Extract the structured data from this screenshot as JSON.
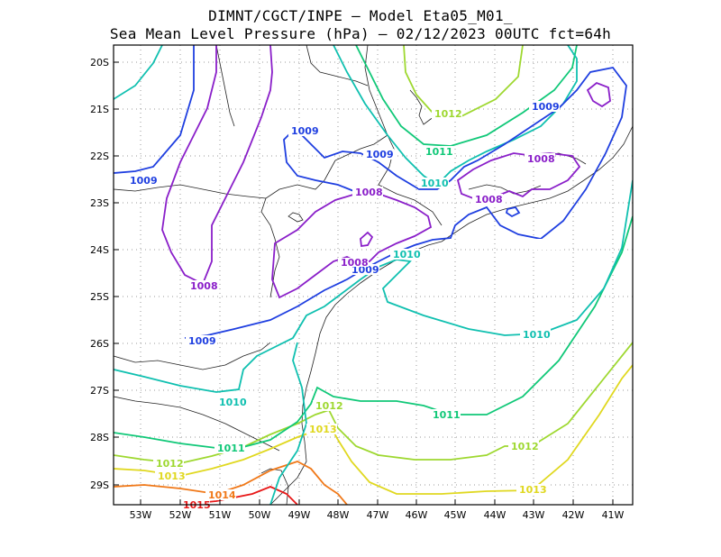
{
  "title_line1": "DIMNT/CGCT/INPE –  Model Eta05_M01_",
  "title_line2": "Sea Mean Level Pressure (hPa) – 02/12/2023 00UTC fct=64h",
  "lat_labels": [
    "20S",
    "21S",
    "22S",
    "23S",
    "24S",
    "25S",
    "26S",
    "27S",
    "28S",
    "29S"
  ],
  "lon_labels": [
    "53W",
    "52W",
    "51W",
    "50W",
    "49W",
    "48W",
    "47W",
    "46W",
    "45W",
    "44W",
    "43W",
    "42W",
    "41W"
  ],
  "contour_labels": {
    "l1008_a": "1008",
    "l1008_b": "1008",
    "l1008_c": "1008",
    "l1008_d": "1008",
    "l1008_e": "1008",
    "l1009_a": "1009",
    "l1009_b": "1009",
    "l1009_c": "1009",
    "l1009_d": "1009",
    "l1009_e": "1009",
    "l1009_f": "1009",
    "l1010_a": "1010",
    "l1010_b": "1010",
    "l1010_c": "1010",
    "l1010_d": "1010",
    "l1011_a": "1011",
    "l1011_b": "1011",
    "l1011_c": "1011",
    "l1012_a": "1012",
    "l1012_b": "1012",
    "l1012_c": "1012",
    "l1012_d": "1012",
    "l1013_a": "1013",
    "l1013_b": "1013",
    "l1013_c": "1013",
    "l1014_a": "1014",
    "l1015_a": "1015"
  },
  "colors": {
    "c1008": "#8a1fc9",
    "c1009": "#1f3fe0",
    "c1010": "#10c0b0",
    "c1011": "#10c878",
    "c1012": "#9ed830",
    "c1013": "#e0d820",
    "c1014": "#f07818",
    "c1015": "#e81818",
    "grid": "#999999",
    "coast": "#222222"
  }
}
